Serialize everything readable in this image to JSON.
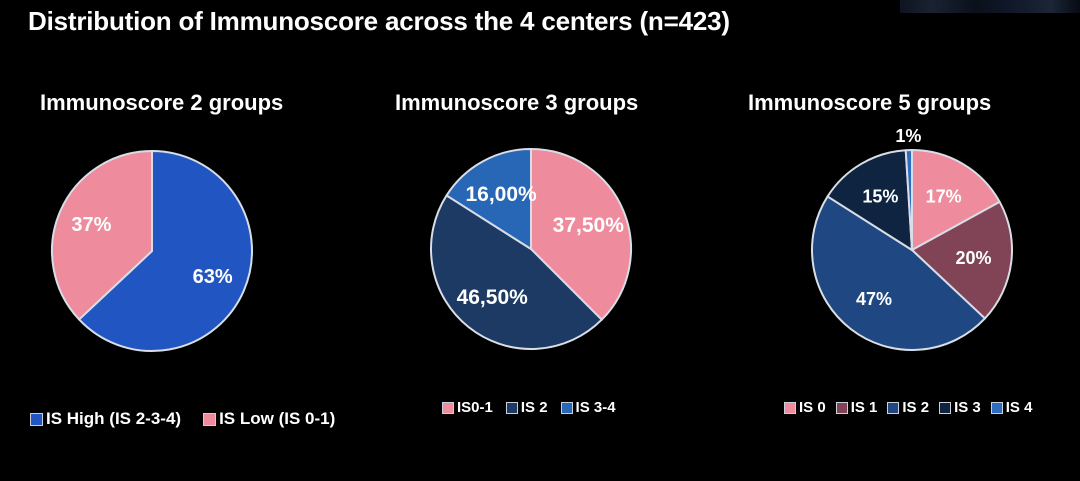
{
  "page": {
    "title": "Distribution of Immunoscore across the 4 centers (n=423)"
  },
  "chart_data": [
    {
      "type": "pie",
      "title": "Immunoscore 2 groups",
      "start_angle_deg": 0,
      "direction": "clockwise",
      "legend_position": "bottom",
      "slices": [
        {
          "label": "IS High (IS 2-3-4)",
          "value": 63,
          "display": "63%",
          "color": "#2156c2"
        },
        {
          "label": "IS Low (IS 0-1)",
          "value": 37,
          "display": "37%",
          "color": "#ee8c9d"
        }
      ]
    },
    {
      "type": "pie",
      "title": "Immunoscore 3 groups",
      "start_angle_deg": 0,
      "direction": "clockwise",
      "legend_position": "bottom",
      "slices": [
        {
          "label": "IS0-1",
          "value": 37.5,
          "display": "37,50%",
          "color": "#ee8c9d"
        },
        {
          "label": "IS 2",
          "value": 46.5,
          "display": "46,50%",
          "color": "#1c3a64"
        },
        {
          "label": "IS 3-4",
          "value": 16.0,
          "display": "16,00%",
          "color": "#2767b6"
        }
      ]
    },
    {
      "type": "pie",
      "title": "Immunoscore 5 groups",
      "start_angle_deg": 0,
      "direction": "clockwise",
      "legend_position": "bottom",
      "slices": [
        {
          "label": "IS 0",
          "value": 17,
          "display": "17%",
          "color": "#ee8c9d"
        },
        {
          "label": "IS 1",
          "value": 20,
          "display": "20%",
          "color": "#804456"
        },
        {
          "label": "IS 2",
          "value": 47,
          "display": "47%",
          "color": "#1f4781"
        },
        {
          "label": "IS 3",
          "value": 15,
          "display": "15%",
          "color": "#0f2440"
        },
        {
          "label": "IS 4",
          "value": 1,
          "display": "1%",
          "color": "#2e6cc2"
        }
      ]
    }
  ]
}
